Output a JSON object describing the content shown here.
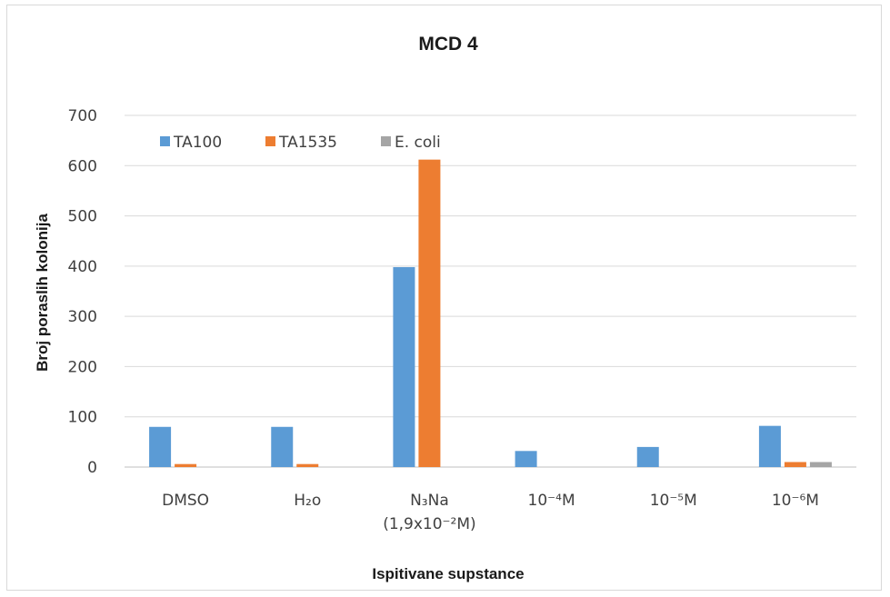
{
  "chart_data": {
    "type": "bar",
    "title": "MCD 4",
    "xlabel": "Ispitivane supstance",
    "ylabel": "Broj poraslih kolonija",
    "ylim": [
      0,
      700
    ],
    "yticks": [
      0,
      100,
      200,
      300,
      400,
      500,
      600,
      700
    ],
    "grid": true,
    "legend_position": "top-left",
    "categories": [
      [
        "DMSO"
      ],
      [
        "H₂o"
      ],
      [
        "N₃Na",
        "(1,9x10⁻²M)"
      ],
      [
        "10⁻⁴M"
      ],
      [
        "10⁻⁵M"
      ],
      [
        "10⁻⁶M"
      ]
    ],
    "series": [
      {
        "name": "TA100",
        "color": "#5b9bd5",
        "values": [
          80,
          80,
          398,
          32,
          40,
          82
        ]
      },
      {
        "name": "TA1535",
        "color": "#ed7d31",
        "values": [
          6,
          6,
          612,
          0,
          0,
          10
        ]
      },
      {
        "name": "E. coli",
        "color": "#a5a5a5",
        "values": [
          0,
          0,
          0,
          0,
          0,
          10
        ]
      }
    ]
  }
}
